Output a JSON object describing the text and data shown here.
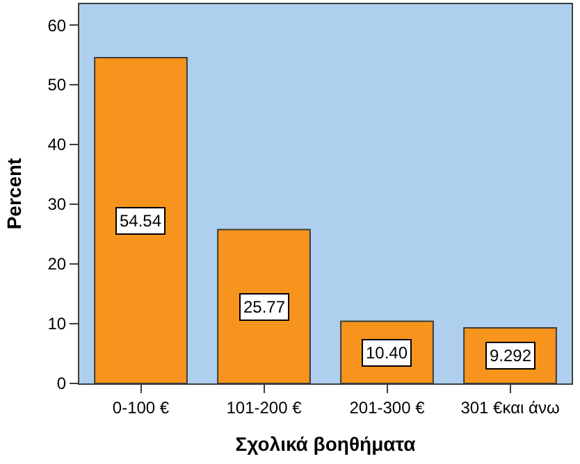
{
  "chart_data": {
    "type": "bar",
    "xlabel": "Σχολικά βοηθήματα",
    "ylabel": "Percent",
    "categories": [
      "0-100 €",
      "101-200 €",
      "201-300 €",
      "301 €και άνω"
    ],
    "values": [
      54.54,
      25.77,
      10.4,
      9.292
    ],
    "value_labels": [
      "54.54",
      "25.77",
      "10.40",
      "9.292"
    ],
    "color": "#f7941d",
    "ylim": [
      0,
      63.5
    ],
    "yticks": [
      0,
      10,
      20,
      30,
      40,
      50,
      60
    ],
    "grid": false
  }
}
